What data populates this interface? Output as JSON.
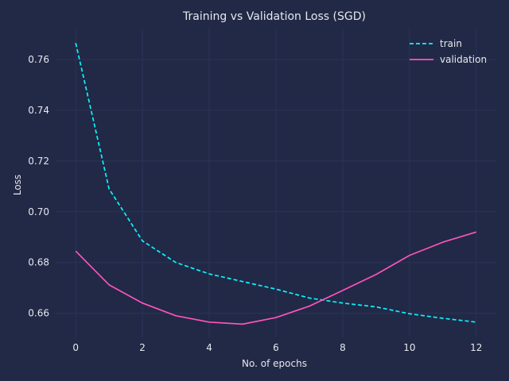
{
  "colors": {
    "background": "#212946",
    "grid": "#2a3459",
    "text": "#e6e8ee",
    "train": "#08f7fe",
    "validation": "#fe53bb"
  },
  "chart_data": {
    "type": "line",
    "title": "Training vs Validation Loss (SGD)",
    "xlabel": "No. of epochs",
    "ylabel": "Loss",
    "xlim": [
      -0.6,
      12.6
    ],
    "ylim": [
      0.6505,
      0.7725
    ],
    "xticks": [
      0,
      2,
      4,
      6,
      8,
      10,
      12
    ],
    "xtick_labels": [
      "0",
      "2",
      "4",
      "6",
      "8",
      "10",
      "12"
    ],
    "yticks": [
      0.66,
      0.68,
      0.7,
      0.72,
      0.74,
      0.76
    ],
    "ytick_labels": [
      "0.66",
      "0.68",
      "0.70",
      "0.72",
      "0.74",
      "0.76"
    ],
    "grid": true,
    "legend_position": "top-right",
    "x": [
      0,
      1,
      2,
      3,
      4,
      5,
      6,
      7,
      8,
      9,
      10,
      11,
      12
    ],
    "series": [
      {
        "name": "train",
        "style": "dashed",
        "color": "#08f7fe",
        "values": [
          0.7665,
          0.709,
          0.6885,
          0.68,
          0.6755,
          0.6725,
          0.6695,
          0.666,
          0.664,
          0.6625,
          0.6598,
          0.658,
          0.6565
        ]
      },
      {
        "name": "validation",
        "style": "solid",
        "color": "#fe53bb",
        "values": [
          0.6845,
          0.6712,
          0.664,
          0.659,
          0.6565,
          0.6557,
          0.6583,
          0.6628,
          0.669,
          0.6753,
          0.6828,
          0.688,
          0.692
        ]
      }
    ]
  }
}
